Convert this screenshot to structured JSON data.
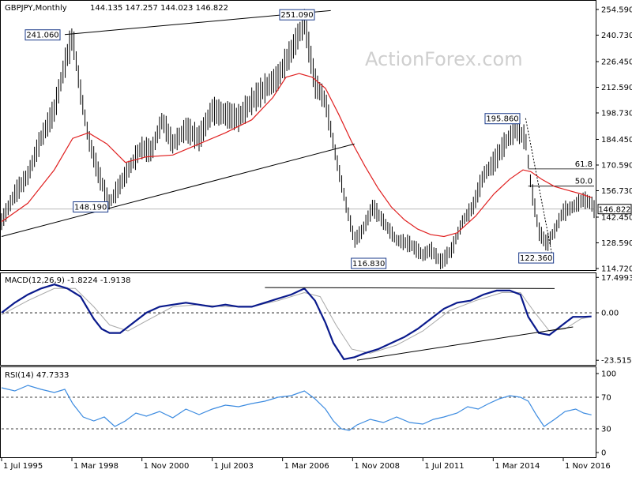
{
  "header": {
    "symbol": "GBPJPY,Monthly",
    "ohlc": "144.135 147.257 144.023 146.822"
  },
  "watermark": "ActionForex.com",
  "colors": {
    "price": "#000000",
    "ma": "#e02020",
    "macd": "#0a1a8c",
    "signal": "#a8a8a8",
    "rsi": "#3c8be0",
    "label_border": "#1a3a8a",
    "label_bg": "#ffffff",
    "last_price_bg": "#ffffff"
  },
  "chart_data": [
    {
      "type": "line",
      "panel": "price",
      "title": "GBPJPY,Monthly 144.135 147.257 144.023 146.822",
      "xlabel": "",
      "ylabel": "",
      "x_range": [
        1995.5,
        2018.0
      ],
      "ylim": [
        114.72,
        258.0
      ],
      "y_ticks": [
        "254.590",
        "240.730",
        "226.450",
        "212.590",
        "198.730",
        "184.450",
        "170.590",
        "156.730",
        "142.450",
        "128.590",
        "114.720"
      ],
      "y_tick_values": [
        254.59,
        240.73,
        226.45,
        212.59,
        198.73,
        184.45,
        170.59,
        156.73,
        142.45,
        128.59,
        114.72
      ],
      "last_price": "146.822",
      "last_price_value": 146.822,
      "series": [
        {
          "name": "",
          "role": "price",
          "x": [
            1995.5,
            1996.0,
            1996.5,
            1997.0,
            1997.5,
            1997.9,
            1998.2,
            1998.5,
            1998.8,
            1999.2,
            1999.6,
            2000.0,
            2000.4,
            2000.8,
            2001.2,
            2001.6,
            2002.0,
            2002.5,
            2003.0,
            2003.5,
            2004.0,
            2004.5,
            2005.0,
            2005.5,
            2006.0,
            2006.5,
            2007.0,
            2007.4,
            2007.8,
            2008.2,
            2008.6,
            2008.9,
            2009.2,
            2009.6,
            2010.0,
            2010.5,
            2011.0,
            2011.5,
            2011.8,
            2012.2,
            2012.6,
            2013.0,
            2013.4,
            2013.8,
            2014.2,
            2014.6,
            2015.0,
            2015.4,
            2015.6,
            2015.9,
            2016.2,
            2016.5,
            2016.8,
            2017.2,
            2017.6,
            2017.9,
            2018.0
          ],
          "y": [
            140,
            155,
            165,
            185,
            200,
            225,
            240,
            210,
            185,
            165,
            150,
            160,
            170,
            180,
            178,
            195,
            182,
            190,
            185,
            200,
            198,
            196,
            205,
            212,
            218,
            232,
            248,
            215,
            205,
            175,
            148,
            130,
            135,
            148,
            140,
            130,
            128,
            122,
            125,
            118,
            125,
            140,
            148,
            165,
            172,
            182,
            190,
            185,
            160,
            135,
            128,
            135,
            145,
            148,
            152,
            150,
            146.822
          ]
        },
        {
          "name": "",
          "role": "moving-average",
          "x": [
            1995.5,
            1996.5,
            1997.5,
            1998.2,
            1998.8,
            1999.5,
            2000.2,
            2001.0,
            2002.0,
            2003.0,
            2004.0,
            2005.0,
            2005.8,
            2006.3,
            2006.8,
            2007.3,
            2007.8,
            2008.3,
            2008.8,
            2009.3,
            2009.8,
            2010.3,
            2010.8,
            2011.3,
            2011.8,
            2012.3,
            2012.8,
            2013.5,
            2014.2,
            2014.8,
            2015.3,
            2015.6,
            2016.0,
            2016.5,
            2017.0,
            2017.5,
            2017.9
          ],
          "y": [
            140,
            150,
            168,
            185,
            188,
            182,
            172,
            175,
            176,
            182,
            188,
            195,
            207,
            218,
            220,
            218,
            212,
            198,
            183,
            170,
            158,
            148,
            141,
            136,
            133,
            132,
            134,
            143,
            155,
            163,
            168,
            167,
            163,
            159,
            157,
            155,
            153
          ]
        }
      ],
      "annotations": [
        {
          "text": "251.090",
          "x": 2007.2,
          "y": 251.09,
          "anchor": "left"
        },
        {
          "text": "241.060",
          "x": 1997.9,
          "y": 241.06,
          "anchor": "left"
        },
        {
          "text": "195.860",
          "x": 2015.3,
          "y": 195.86,
          "anchor": "left"
        },
        {
          "text": "148.190",
          "x": 1999.6,
          "y": 148.19,
          "anchor": "left"
        },
        {
          "text": "116.830",
          "x": 2008.9,
          "y": 116.83,
          "anchor": "right"
        },
        {
          "text": "122.360",
          "x": 2016.4,
          "y": 122.36,
          "anchor": "left"
        }
      ],
      "levels": [
        {
          "label": "61.8",
          "value": 168.5
        },
        {
          "label": "50.0",
          "value": 159.2
        }
      ],
      "trendlines": [
        {
          "x": [
            1997.9,
            2008.0
          ],
          "y": [
            241.06,
            254.0
          ]
        },
        {
          "x": [
            1995.5,
            2008.9
          ],
          "y": [
            132.0,
            182.0
          ]
        }
      ]
    },
    {
      "type": "line",
      "panel": "macd",
      "title": "MACD(12,26,9) -1.8224 -1.9138",
      "ylim": [
        -25.0,
        18.0
      ],
      "y_ticks": [
        "17.4993",
        "0.00",
        "-23.5153"
      ],
      "y_tick_values": [
        17.4993,
        0.0,
        -23.5153
      ],
      "series": [
        {
          "name": "",
          "role": "macd",
          "x": [
            1995.5,
            1996.0,
            1996.5,
            1997.0,
            1997.5,
            1998.0,
            1998.5,
            1999.0,
            1999.3,
            1999.6,
            2000.0,
            2000.5,
            2001.0,
            2001.5,
            2002.0,
            2002.5,
            2003.0,
            2003.5,
            2004.0,
            2004.5,
            2005.0,
            2005.5,
            2006.0,
            2006.5,
            2007.0,
            2007.4,
            2007.8,
            2008.1,
            2008.5,
            2008.9,
            2009.3,
            2009.8,
            2010.3,
            2010.8,
            2011.3,
            2011.8,
            2012.3,
            2012.8,
            2013.3,
            2013.8,
            2014.3,
            2014.8,
            2015.2,
            2015.5,
            2015.9,
            2016.3,
            2016.8,
            2017.2,
            2017.6,
            2017.9
          ],
          "y": [
            0,
            5,
            9,
            12,
            14,
            12,
            8,
            -3,
            -8,
            -10,
            -10,
            -5,
            0,
            3,
            4,
            5,
            4,
            3,
            4,
            3,
            3,
            5,
            7,
            9,
            12,
            6,
            -5,
            -15,
            -23,
            -22,
            -20,
            -18,
            -15,
            -12,
            -8,
            -3,
            2,
            5,
            6,
            9,
            11,
            11,
            9,
            -2,
            -10,
            -11,
            -6,
            -2,
            -2,
            -1.82
          ]
        },
        {
          "name": "",
          "role": "signal",
          "x": [
            1995.5,
            1996.5,
            1997.5,
            1998.3,
            1999.0,
            1999.6,
            2000.3,
            2001.0,
            2002.0,
            2003.0,
            2004.0,
            2005.0,
            2006.0,
            2007.0,
            2007.6,
            2008.2,
            2008.8,
            2009.5,
            2010.5,
            2011.5,
            2012.5,
            2013.5,
            2014.5,
            2015.2,
            2015.7,
            2016.3,
            2016.9,
            2017.5,
            2017.9
          ],
          "y": [
            -1,
            6,
            12,
            12,
            3,
            -6,
            -9,
            -4,
            3,
            4,
            3,
            3,
            6,
            10,
            8,
            -6,
            -18,
            -20,
            -16,
            -9,
            1,
            6,
            10,
            10,
            1,
            -9,
            -8,
            -3,
            -1.91
          ]
        }
      ],
      "trendlines": [
        {
          "x": [
            2005.5,
            2016.5
          ],
          "y": [
            12.5,
            12.0
          ]
        },
        {
          "x": [
            2009.0,
            2017.2
          ],
          "y": [
            -23.5,
            -7.0
          ]
        }
      ]
    },
    {
      "type": "line",
      "panel": "rsi",
      "title": "RSI(14) 47.7333",
      "ylim": [
        -5,
        105
      ],
      "y_ticks": [
        "100",
        "70",
        "30",
        "0"
      ],
      "y_tick_values": [
        100,
        70,
        30,
        0
      ],
      "series": [
        {
          "name": "",
          "role": "rsi",
          "x": [
            1995.5,
            1996.0,
            1996.5,
            1997.0,
            1997.5,
            1997.9,
            1998.2,
            1998.6,
            1999.0,
            1999.4,
            1999.8,
            2000.2,
            2000.6,
            2001.0,
            2001.5,
            2002.0,
            2002.5,
            2003.0,
            2003.5,
            2004.0,
            2004.5,
            2005.0,
            2005.5,
            2006.0,
            2006.5,
            2007.0,
            2007.4,
            2007.8,
            2008.1,
            2008.4,
            2008.7,
            2009.0,
            2009.5,
            2010.0,
            2010.5,
            2011.0,
            2011.5,
            2011.9,
            2012.3,
            2012.8,
            2013.2,
            2013.6,
            2014.0,
            2014.4,
            2014.8,
            2015.2,
            2015.5,
            2015.8,
            2016.1,
            2016.5,
            2016.9,
            2017.3,
            2017.6,
            2017.9
          ],
          "y": [
            82,
            78,
            85,
            80,
            76,
            80,
            62,
            45,
            40,
            45,
            33,
            40,
            50,
            46,
            52,
            44,
            55,
            48,
            55,
            60,
            58,
            62,
            65,
            70,
            72,
            78,
            68,
            55,
            40,
            30,
            28,
            35,
            42,
            38,
            45,
            38,
            36,
            42,
            45,
            50,
            58,
            55,
            62,
            68,
            72,
            70,
            65,
            48,
            33,
            42,
            52,
            55,
            50,
            47.73
          ]
        }
      ]
    }
  ],
  "x_axis": {
    "labels": [
      "1 Jul 1995",
      "1 Mar 1998",
      "1 Nov 2000",
      "1 Jul 2003",
      "1 Mar 2006",
      "1 Nov 2008",
      "1 Jul 2011",
      "1 Mar 2014",
      "1 Nov 2016"
    ],
    "values": [
      1995.5,
      1998.17,
      2000.83,
      2003.5,
      2006.17,
      2008.83,
      2011.5,
      2014.17,
      2016.83
    ]
  }
}
